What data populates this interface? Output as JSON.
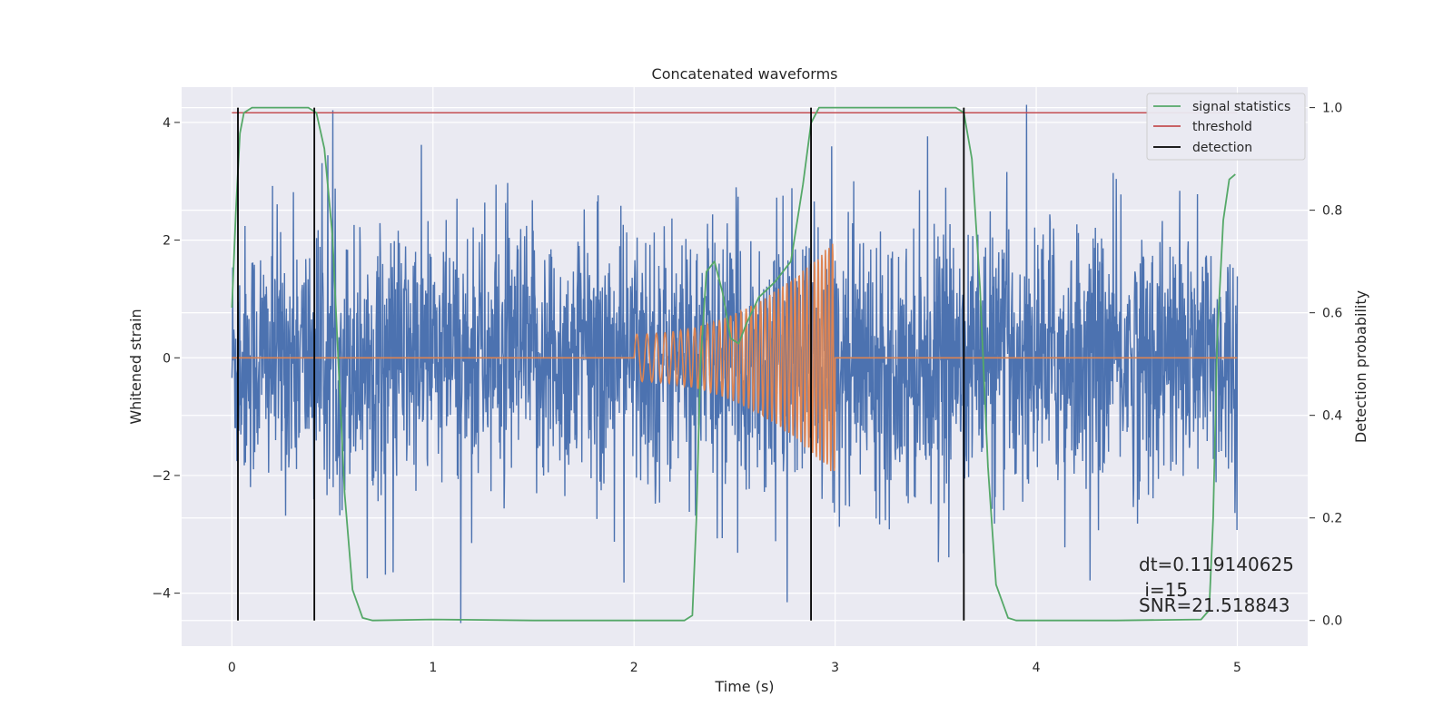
{
  "chart_data": {
    "type": "line",
    "title": "Concatenated waveforms",
    "xlabel": "Time (s)",
    "ylabel": "Whitened strain",
    "ylabel_right": "Detection probability",
    "xlim": [
      -0.25,
      5.35
    ],
    "ylim": [
      -4.9,
      4.6
    ],
    "ylim_right": [
      -0.05,
      1.04
    ],
    "x_ticks": [
      0,
      1,
      2,
      3,
      4,
      5
    ],
    "y_ticks": [
      -4,
      -2,
      0,
      2,
      4
    ],
    "y_ticks_right": [
      0.0,
      0.2,
      0.4,
      0.6,
      0.8,
      1.0
    ],
    "x_tick_labels": [
      "0",
      "1",
      "2",
      "3",
      "4",
      "5"
    ],
    "y_tick_labels": [
      "−4",
      "−2",
      "0",
      "2",
      "4"
    ],
    "y_tick_labels_right": [
      "0.0",
      "0.2",
      "0.4",
      "0.6",
      "0.8",
      "1.0"
    ],
    "grid": true,
    "legend_position": "top-right",
    "colors": {
      "strain": "#4c72b0",
      "template": "#dd8452",
      "signal_statistics": "#55a868",
      "threshold": "#c44e52",
      "detection": "#000000",
      "plot_background": "#eaeaf2",
      "grid": "#ffffff"
    },
    "series": [
      {
        "key": "strain",
        "axis": "left",
        "x_range": [
          0,
          5
        ],
        "envelope": [
          {
            "x": 0.0,
            "amp": 1.3
          },
          {
            "x": 2.0,
            "amp": 1.3
          },
          {
            "x": 3.0,
            "amp": 1.3
          },
          {
            "x": 5.0,
            "amp": 1.3
          }
        ]
      },
      {
        "key": "template",
        "axis": "left",
        "x_range": [
          0,
          5
        ],
        "chirp_start": 2.0,
        "chirp_end": 3.0,
        "chirp_amp_start": 0.4,
        "chirp_amp_end": 2.0
      },
      {
        "name": "signal statistics",
        "key": "signal_statistics",
        "axis": "right",
        "points": [
          [
            0.0,
            0.61
          ],
          [
            0.02,
            0.8
          ],
          [
            0.04,
            0.95
          ],
          [
            0.06,
            0.99
          ],
          [
            0.1,
            1.0
          ],
          [
            0.38,
            1.0
          ],
          [
            0.42,
            0.99
          ],
          [
            0.46,
            0.92
          ],
          [
            0.5,
            0.75
          ],
          [
            0.53,
            0.5
          ],
          [
            0.56,
            0.25
          ],
          [
            0.6,
            0.06
          ],
          [
            0.65,
            0.005
          ],
          [
            0.7,
            0.0
          ],
          [
            1.0,
            0.002
          ],
          [
            1.5,
            0.0
          ],
          [
            2.0,
            0.0
          ],
          [
            2.25,
            0.0
          ],
          [
            2.29,
            0.01
          ],
          [
            2.31,
            0.2
          ],
          [
            2.33,
            0.5
          ],
          [
            2.36,
            0.68
          ],
          [
            2.4,
            0.7
          ],
          [
            2.44,
            0.64
          ],
          [
            2.48,
            0.55
          ],
          [
            2.52,
            0.54
          ],
          [
            2.56,
            0.58
          ],
          [
            2.62,
            0.63
          ],
          [
            2.7,
            0.66
          ],
          [
            2.78,
            0.7
          ],
          [
            2.84,
            0.85
          ],
          [
            2.88,
            0.97
          ],
          [
            2.92,
            1.0
          ],
          [
            3.6,
            1.0
          ],
          [
            3.64,
            0.99
          ],
          [
            3.68,
            0.9
          ],
          [
            3.72,
            0.65
          ],
          [
            3.76,
            0.3
          ],
          [
            3.8,
            0.07
          ],
          [
            3.86,
            0.005
          ],
          [
            3.9,
            0.0
          ],
          [
            4.4,
            0.0
          ],
          [
            4.82,
            0.002
          ],
          [
            4.86,
            0.02
          ],
          [
            4.88,
            0.2
          ],
          [
            4.9,
            0.55
          ],
          [
            4.93,
            0.78
          ],
          [
            4.96,
            0.86
          ],
          [
            4.99,
            0.87
          ]
        ]
      },
      {
        "name": "threshold",
        "key": "threshold",
        "axis": "right",
        "x": [
          0.0,
          5.0
        ],
        "value": 0.99
      },
      {
        "name": "detection",
        "key": "detection",
        "axis": "right",
        "x": [
          0.03,
          0.41,
          2.88,
          3.64
        ],
        "y_range": [
          0.0,
          1.0
        ]
      }
    ],
    "annotations": [
      {
        "key": "dt",
        "text": "dt=0.119140625"
      },
      {
        "key": "i",
        "text": " i=15"
      },
      {
        "key": "snr",
        "text": "SNR=21.518843"
      }
    ]
  }
}
